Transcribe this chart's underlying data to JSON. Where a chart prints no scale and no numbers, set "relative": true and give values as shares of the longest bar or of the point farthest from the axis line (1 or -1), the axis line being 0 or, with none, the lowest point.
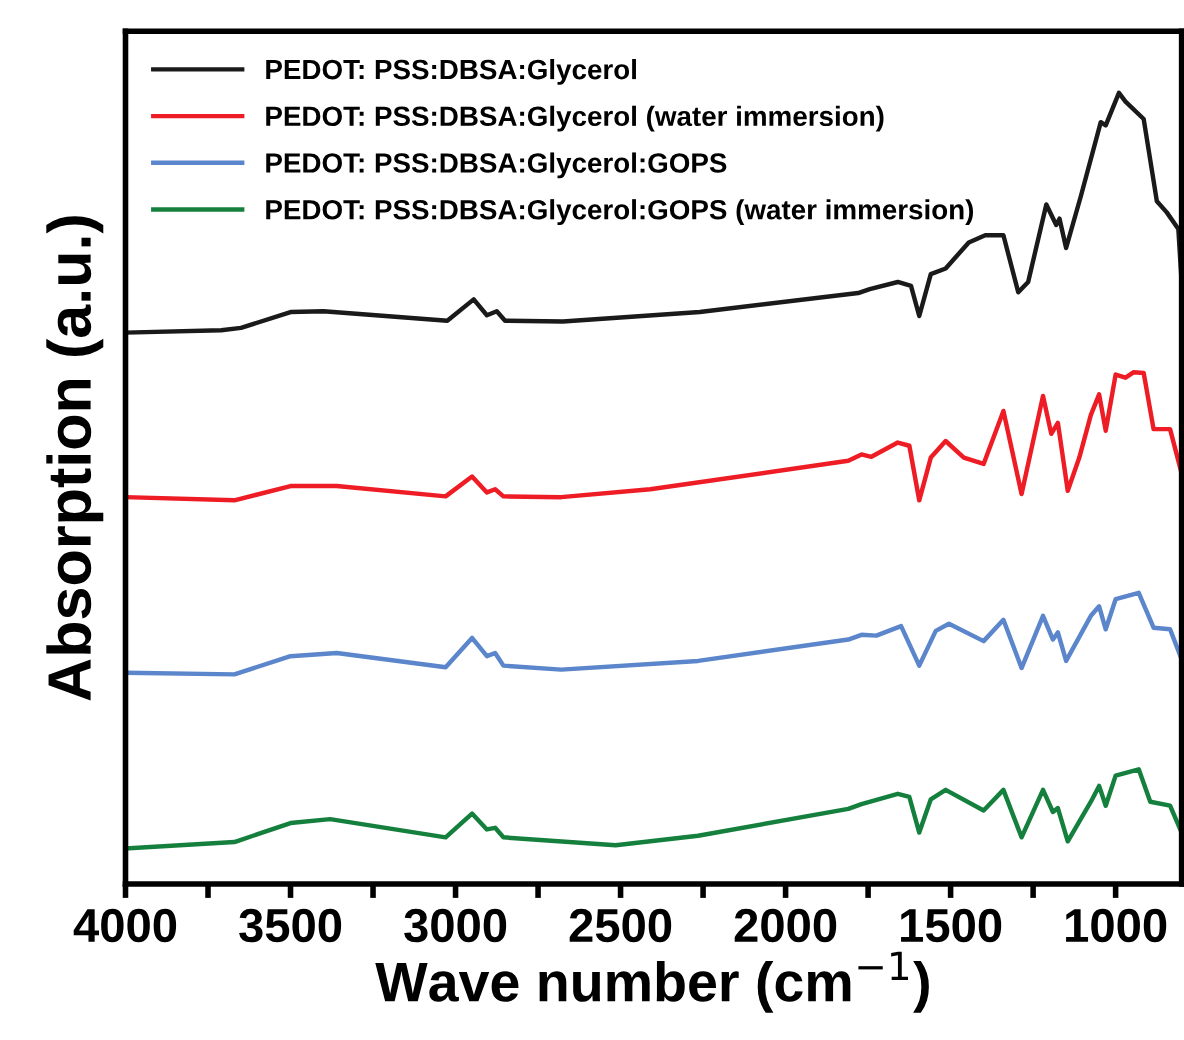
{
  "chart_data": {
    "type": "line",
    "relative": true,
    "xlabel": "Wave number (cm$^{−1}$)",
    "ylabel": "Absorption (a.u.)",
    "xlim": [
      4000,
      800
    ],
    "xticks": [
      4000,
      {
        "value": 3750,
        "label": null
      },
      3500,
      {
        "value": 3250,
        "label": null
      },
      3000,
      {
        "value": 2750,
        "label": null
      },
      2500,
      {
        "value": 2250,
        "label": null
      },
      2000,
      {
        "value": 1750,
        "label": null
      },
      1500,
      {
        "value": 1250,
        "label": null
      },
      1000
    ],
    "tick_labels": "x",
    "grid": false,
    "legend": "top left",
    "marker": "none",
    "line_style": "solid",
    "series": [
      {
        "name": "PEDOT: PSS:DBSA:Glycerol",
        "color": "#1a1a1a",
        "x": [
          4000,
          3710,
          3650,
          3500,
          3400,
          3025,
          2945,
          2905,
          2875,
          2850,
          2675,
          2260,
          1780,
          1745,
          1660,
          1620,
          1595,
          1560,
          1515,
          1445,
          1395,
          1340,
          1295,
          1265,
          1210,
          1180,
          1170,
          1150,
          1105,
          1045,
          1030,
          990,
          970,
          915,
          875,
          845,
          810,
          800
        ],
        "values": [
          0.697,
          0.7,
          0.703,
          0.723,
          0.724,
          0.712,
          0.739,
          0.719,
          0.724,
          0.712,
          0.711,
          0.723,
          0.747,
          0.752,
          0.761,
          0.756,
          0.718,
          0.771,
          0.778,
          0.811,
          0.82,
          0.82,
          0.748,
          0.761,
          0.859,
          0.833,
          0.841,
          0.804,
          0.87,
          0.963,
          0.959,
          1.0,
          0.989,
          0.967,
          0.863,
          0.849,
          0.828,
          0.761
        ]
      },
      {
        "name": "PEDOT: PSS:DBSA:Glycerol (water immersion)",
        "color": "#ee1c25",
        "x": [
          4000,
          3670,
          3500,
          3360,
          3030,
          2950,
          2905,
          2880,
          2855,
          2680,
          2410,
          1810,
          1770,
          1740,
          1660,
          1625,
          1595,
          1560,
          1515,
          1460,
          1400,
          1340,
          1285,
          1220,
          1195,
          1175,
          1145,
          1110,
          1075,
          1050,
          1030,
          1000,
          970,
          945,
          915,
          885,
          835,
          800
        ],
        "values": [
          0.489,
          0.485,
          0.503,
          0.503,
          0.49,
          0.515,
          0.495,
          0.499,
          0.49,
          0.489,
          0.499,
          0.535,
          0.543,
          0.54,
          0.558,
          0.554,
          0.485,
          0.539,
          0.56,
          0.539,
          0.531,
          0.598,
          0.493,
          0.617,
          0.569,
          0.583,
          0.497,
          0.539,
          0.593,
          0.619,
          0.573,
          0.644,
          0.64,
          0.647,
          0.646,
          0.575,
          0.575,
          0.519
        ]
      },
      {
        "name": "PEDOT: PSS:DBSA:Glycerol:GOPS",
        "color": "#5b86cb",
        "x": [
          4000,
          3670,
          3500,
          3360,
          3030,
          2950,
          2905,
          2880,
          2855,
          2680,
          2265,
          1810,
          1770,
          1725,
          1650,
          1595,
          1545,
          1505,
          1400,
          1340,
          1285,
          1220,
          1190,
          1175,
          1150,
          1075,
          1050,
          1030,
          1000,
          930,
          885,
          835,
          800
        ],
        "values": [
          0.267,
          0.265,
          0.288,
          0.292,
          0.274,
          0.311,
          0.288,
          0.292,
          0.276,
          0.271,
          0.282,
          0.309,
          0.315,
          0.314,
          0.326,
          0.276,
          0.32,
          0.329,
          0.307,
          0.334,
          0.273,
          0.339,
          0.309,
          0.318,
          0.282,
          0.339,
          0.351,
          0.322,
          0.36,
          0.368,
          0.324,
          0.322,
          0.284
        ]
      },
      {
        "name": "PEDOT: PSS:DBSA:Glycerol:GOPS (water immersion)",
        "color": "#15803d",
        "x": [
          4000,
          3670,
          3500,
          3380,
          3030,
          2950,
          2905,
          2880,
          2855,
          2515,
          2265,
          1810,
          1770,
          1660,
          1625,
          1595,
          1560,
          1515,
          1400,
          1340,
          1285,
          1220,
          1190,
          1175,
          1145,
          1075,
          1050,
          1030,
          1000,
          930,
          895,
          835,
          800
        ],
        "values": [
          0.045,
          0.053,
          0.077,
          0.082,
          0.059,
          0.089,
          0.069,
          0.071,
          0.059,
          0.049,
          0.061,
          0.095,
          0.101,
          0.114,
          0.11,
          0.065,
          0.107,
          0.119,
          0.093,
          0.119,
          0.059,
          0.119,
          0.091,
          0.096,
          0.054,
          0.104,
          0.124,
          0.099,
          0.137,
          0.145,
          0.104,
          0.099,
          0.065
        ]
      }
    ]
  }
}
